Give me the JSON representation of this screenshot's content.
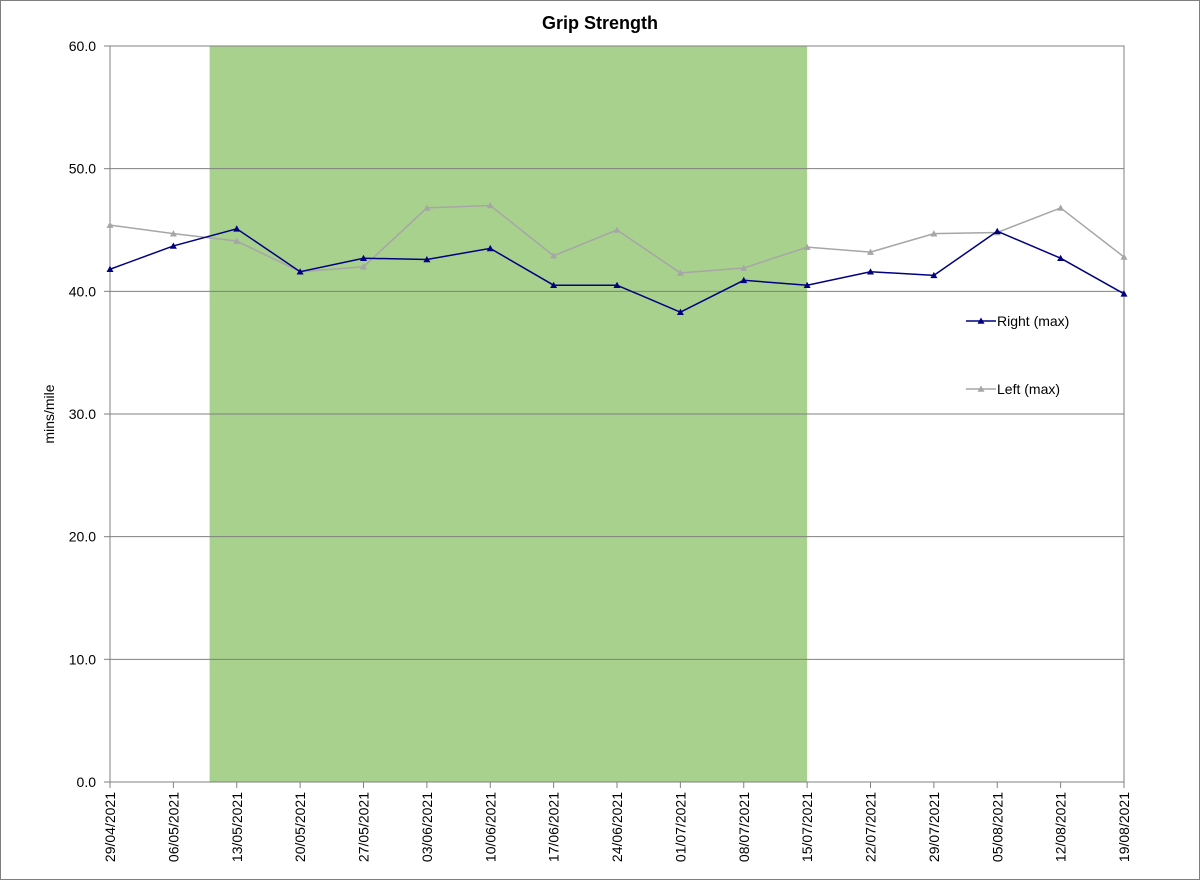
{
  "chart_data": {
    "type": "line",
    "title": "Grip Strength",
    "xlabel": "",
    "ylabel": "mins/mile",
    "ylim": [
      0,
      60
    ],
    "yticks": [
      "0.0",
      "10.0",
      "20.0",
      "30.0",
      "40.0",
      "50.0",
      "60.0"
    ],
    "x": [
      "29/04/2021",
      "06/05/2021",
      "13/05/2021",
      "20/05/2021",
      "27/05/2021",
      "03/06/2021",
      "10/06/2021",
      "17/06/2021",
      "24/06/2021",
      "01/07/2021",
      "08/07/2021",
      "15/07/2021",
      "22/07/2021",
      "29/07/2021",
      "05/08/2021",
      "12/08/2021",
      "19/08/2021"
    ],
    "xlim": [
      "29/04/2021",
      "19/08/2021"
    ],
    "grid": "horizontal",
    "legend_position": "right",
    "highlight_band": {
      "from": "10/05/2021",
      "to": "15/07/2021",
      "color": "#a9d18e"
    },
    "series": [
      {
        "name": "Right (max)",
        "color": "#000080",
        "marker": "triangle",
        "points": [
          [
            "29/04/2021",
            41.8
          ],
          [
            "06/05/2021",
            43.7
          ],
          [
            "13/05/2021",
            45.1
          ],
          [
            "20/05/2021",
            41.6
          ],
          [
            "27/05/2021",
            42.7
          ],
          [
            "03/06/2021",
            42.6
          ],
          [
            "10/06/2021",
            43.5
          ],
          [
            "17/06/2021",
            40.5
          ],
          [
            "24/06/2021",
            40.5
          ],
          [
            "01/07/2021",
            38.3
          ],
          [
            "08/07/2021",
            40.9
          ],
          [
            "15/07/2021",
            40.5
          ],
          [
            "22/07/2021",
            41.6
          ],
          [
            "29/07/2021",
            41.3
          ],
          [
            "05/08/2021",
            44.9
          ],
          [
            "12/08/2021",
            42.7
          ],
          [
            "19/08/2021",
            39.8
          ]
        ]
      },
      {
        "name": "Left (max)",
        "color": "#a6a6a6",
        "marker": "triangle",
        "points": [
          [
            "29/04/2021",
            45.4
          ],
          [
            "06/05/2021",
            44.7
          ],
          [
            "13/05/2021",
            44.1
          ],
          [
            "20/05/2021",
            41.6
          ],
          [
            "27/05/2021",
            42.0
          ],
          [
            "03/06/2021",
            46.8
          ],
          [
            "10/06/2021",
            47.0
          ],
          [
            "17/06/2021",
            42.9
          ],
          [
            "24/06/2021",
            45.0
          ],
          [
            "01/07/2021",
            41.5
          ],
          [
            "08/07/2021",
            41.9
          ],
          [
            "15/07/2021",
            43.6
          ],
          [
            "22/07/2021",
            43.2
          ],
          [
            "29/07/2021",
            44.7
          ],
          [
            "05/08/2021",
            44.8
          ],
          [
            "12/08/2021",
            46.8
          ],
          [
            "19/08/2021",
            42.8
          ]
        ]
      }
    ]
  }
}
